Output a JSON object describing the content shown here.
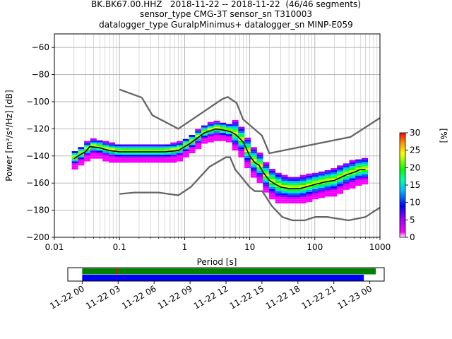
{
  "header": {
    "line1": "BK.BK67.00.HHZ   2018-11-22 -- 2018-11-22  (46/46 segments)",
    "line2": "sensor_type CMG-3T sensor_sn T310003",
    "line3": "datalogger_type GuralpMinimus+ datalogger_sn MINP-E059"
  },
  "chart_data": {
    "type": "heatmap",
    "xlabel": "Period [s]",
    "ylabel": "Power [m²/s⁴/Hz] [dB]",
    "xscale": "log",
    "xlim": [
      0.01,
      1000
    ],
    "ylim": [
      -200,
      -50
    ],
    "grid": true,
    "x_ticks": [
      {
        "value": 0.01,
        "label": "0.01"
      },
      {
        "value": 0.1,
        "label": "0.1"
      },
      {
        "value": 1,
        "label": "1"
      },
      {
        "value": 10,
        "label": "10"
      },
      {
        "value": 100,
        "label": "100"
      },
      {
        "value": 1000,
        "label": "1000"
      }
    ],
    "y_ticks": [
      -60,
      -80,
      -100,
      -120,
      -140,
      -160,
      -180,
      -200
    ],
    "y_tick_labels": [
      "−60",
      "−80",
      "−100",
      "−120",
      "−140",
      "−160",
      "−180",
      "−200"
    ],
    "colorbar": {
      "label": "[%]",
      "range": [
        0,
        30
      ],
      "ticks": [
        "0",
        "5",
        "10",
        "15",
        "20",
        "25",
        "30"
      ]
    },
    "noise_models": [
      {
        "points": [
          [
            0.1,
            -91
          ],
          [
            0.22,
            -97
          ],
          [
            0.32,
            -110
          ],
          [
            0.8,
            -120
          ],
          [
            3.8,
            -98
          ],
          [
            4.6,
            -96.5
          ],
          [
            6.3,
            -101
          ],
          [
            7.9,
            -113
          ],
          [
            15.4,
            -125
          ],
          [
            20,
            -138
          ],
          [
            354,
            -126
          ],
          [
            1000,
            -112
          ]
        ]
      },
      {
        "points": [
          [
            0.1,
            -168
          ],
          [
            0.17,
            -167
          ],
          [
            0.4,
            -167
          ],
          [
            0.8,
            -169
          ],
          [
            1.24,
            -163
          ],
          [
            2.4,
            -148
          ],
          [
            4.3,
            -141
          ],
          [
            5,
            -141
          ],
          [
            6,
            -150
          ],
          [
            10,
            -163
          ],
          [
            12,
            -166
          ],
          [
            15.6,
            -166
          ],
          [
            21.9,
            -177
          ],
          [
            31.6,
            -185
          ],
          [
            45,
            -187.5
          ],
          [
            70,
            -187.5
          ],
          [
            101,
            -185
          ],
          [
            154,
            -185
          ],
          [
            328,
            -187.5
          ],
          [
            600,
            -185
          ],
          [
            1000,
            -178
          ]
        ]
      }
    ],
    "mode_curve": {
      "points": [
        [
          0.02,
          -142
        ],
        [
          0.025,
          -139
        ],
        [
          0.03,
          -137
        ],
        [
          0.035,
          -133
        ],
        [
          0.05,
          -134
        ],
        [
          0.07,
          -136
        ],
        [
          0.1,
          -137
        ],
        [
          0.2,
          -137
        ],
        [
          0.3,
          -137
        ],
        [
          0.5,
          -137
        ],
        [
          0.8,
          -136
        ],
        [
          1.2,
          -131
        ],
        [
          2,
          -123
        ],
        [
          3,
          -120
        ],
        [
          4,
          -121
        ],
        [
          5,
          -122
        ],
        [
          6,
          -124
        ],
        [
          7,
          -127
        ],
        [
          8,
          -130
        ],
        [
          10,
          -140
        ],
        [
          12,
          -145
        ],
        [
          14,
          -147
        ],
        [
          16,
          -152
        ],
        [
          20,
          -158
        ],
        [
          25,
          -161
        ],
        [
          30,
          -163
        ],
        [
          40,
          -164
        ],
        [
          60,
          -164
        ],
        [
          100,
          -161
        ],
        [
          150,
          -159
        ],
        [
          200,
          -158
        ],
        [
          300,
          -154
        ],
        [
          400,
          -152
        ],
        [
          500,
          -150
        ],
        [
          600,
          -150
        ]
      ]
    },
    "time_axis": {
      "ticks": [
        "11-22 00",
        "11-22 03",
        "11-22 06",
        "11-22 09",
        "11-22 12",
        "11-22 15",
        "11-22 18",
        "11-22 21",
        "11-23 00"
      ],
      "bars": [
        {
          "color": "#008000",
          "start_hour": 0,
          "end_hour": 24.5
        },
        {
          "color": "#0000ff",
          "start_hour": 0,
          "end_hour": 23.5
        }
      ],
      "range_hours": [
        -1.2,
        25.2
      ],
      "marker_hour": 2.9
    }
  }
}
